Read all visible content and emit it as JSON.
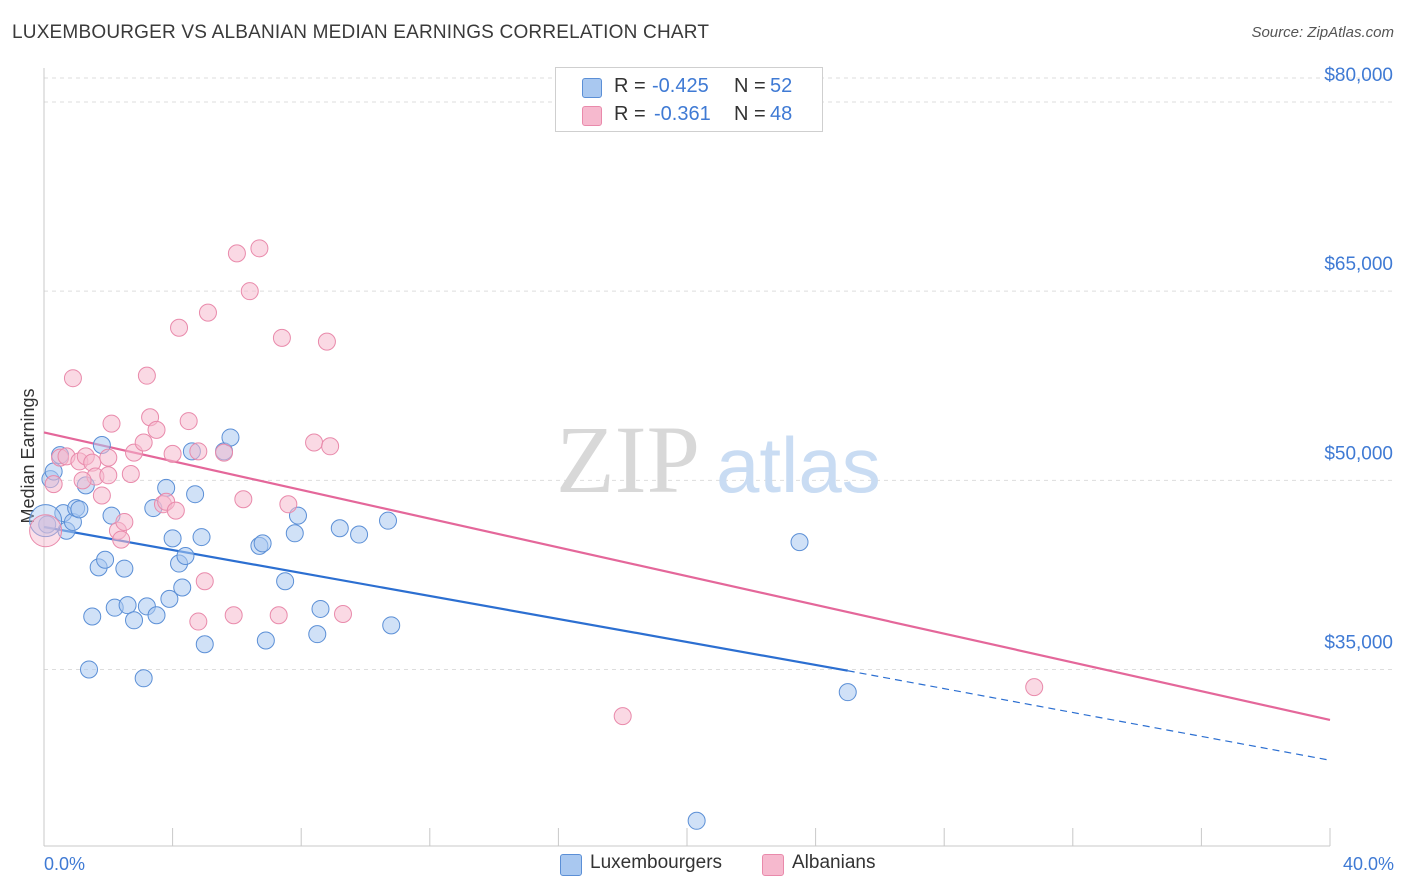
{
  "title": "LUXEMBOURGER VS ALBANIAN MEDIAN EARNINGS CORRELATION CHART",
  "source": "Source: ZipAtlas.com",
  "watermark": {
    "zip": "ZIP",
    "atlas": "atlas"
  },
  "colors": {
    "blue_fill": "#a9c8f0",
    "blue_stroke": "#5b8fd6",
    "blue_line": "#2c6fd1",
    "pink_fill": "#f6b9ce",
    "pink_stroke": "#e98aab",
    "pink_line": "#e4679a",
    "axis_label": "#3f7ad4",
    "grid": "#dddddd"
  },
  "legend": {
    "rows": [
      {
        "series": "blue",
        "r_label": "R =",
        "r_value": "-0.425",
        "n_label": "N =",
        "n_value": "52"
      },
      {
        "series": "pink",
        "r_label": "R =",
        "r_value": "-0.361",
        "n_label": "N =",
        "n_value": "48"
      }
    ]
  },
  "bottom_legend": {
    "blue": "Luxembourgers",
    "pink": "Albanians"
  },
  "chart_data": {
    "type": "scatter",
    "xlabel": "",
    "ylabel": "Median Earnings",
    "xlim": [
      0,
      40
    ],
    "ylim": [
      21000,
      82700
    ],
    "x_tick_labels": {
      "left": "0.0%",
      "right": "40.0%"
    },
    "y_ticks": [
      {
        "value": 35000,
        "label": "$35,000"
      },
      {
        "value": 50000,
        "label": "$50,000"
      },
      {
        "value": 65000,
        "label": "$65,000"
      },
      {
        "value": 80000,
        "label": "$80,000"
      }
    ],
    "x_tick_marks": [
      0,
      4,
      8,
      12,
      16,
      20,
      24,
      28,
      32,
      36,
      40
    ],
    "series": [
      {
        "name": "Luxembourgers",
        "color": "blue",
        "trend": {
          "x0": 0,
          "y0": 46300,
          "x1": 25,
          "y1": 34900,
          "dash_to_x": 40,
          "dash_to_y": 27800
        },
        "points": [
          [
            0.1,
            46500
          ],
          [
            0.2,
            50100
          ],
          [
            0.3,
            50700
          ],
          [
            0.5,
            52000
          ],
          [
            0.6,
            47400
          ],
          [
            0.7,
            46000
          ],
          [
            0.9,
            46700
          ],
          [
            1.0,
            47800
          ],
          [
            1.1,
            47700
          ],
          [
            1.3,
            49600
          ],
          [
            1.4,
            35000
          ],
          [
            1.5,
            39200
          ],
          [
            1.7,
            43100
          ],
          [
            1.8,
            52800
          ],
          [
            1.9,
            43700
          ],
          [
            2.1,
            47200
          ],
          [
            2.2,
            39900
          ],
          [
            2.5,
            43000
          ],
          [
            2.6,
            40100
          ],
          [
            2.8,
            38900
          ],
          [
            3.1,
            34300
          ],
          [
            3.2,
            40000
          ],
          [
            3.4,
            47800
          ],
          [
            3.5,
            39300
          ],
          [
            3.8,
            49400
          ],
          [
            3.9,
            40600
          ],
          [
            4.0,
            45400
          ],
          [
            4.2,
            43400
          ],
          [
            4.3,
            41500
          ],
          [
            4.4,
            44000
          ],
          [
            4.6,
            52300
          ],
          [
            4.7,
            48900
          ],
          [
            4.9,
            45500
          ],
          [
            5.0,
            37000
          ],
          [
            5.6,
            52300
          ],
          [
            5.8,
            53400
          ],
          [
            6.7,
            44800
          ],
          [
            6.8,
            45000
          ],
          [
            6.9,
            37300
          ],
          [
            7.5,
            42000
          ],
          [
            7.9,
            47200
          ],
          [
            7.8,
            45800
          ],
          [
            8.5,
            37800
          ],
          [
            8.6,
            39800
          ],
          [
            9.2,
            46200
          ],
          [
            9.8,
            45700
          ],
          [
            10.7,
            46800
          ],
          [
            10.8,
            38500
          ],
          [
            23.5,
            45100
          ],
          [
            25.0,
            33200
          ],
          [
            20.3,
            23000
          ],
          [
            0.05,
            46800
          ]
        ]
      },
      {
        "name": "Albanians",
        "color": "pink",
        "trend": {
          "x0": 0,
          "y0": 53800,
          "x1": 40,
          "y1": 31000
        },
        "points": [
          [
            0.05,
            46000
          ],
          [
            0.3,
            49700
          ],
          [
            0.5,
            51800
          ],
          [
            0.7,
            51900
          ],
          [
            0.9,
            58100
          ],
          [
            1.1,
            51500
          ],
          [
            1.3,
            51900
          ],
          [
            1.5,
            51400
          ],
          [
            1.6,
            50300
          ],
          [
            1.8,
            48800
          ],
          [
            2.0,
            50400
          ],
          [
            2.1,
            54500
          ],
          [
            2.3,
            46000
          ],
          [
            2.4,
            45300
          ],
          [
            2.5,
            46700
          ],
          [
            2.7,
            50500
          ],
          [
            2.8,
            52200
          ],
          [
            3.1,
            53000
          ],
          [
            3.2,
            58300
          ],
          [
            3.3,
            55000
          ],
          [
            3.5,
            54000
          ],
          [
            3.7,
            48100
          ],
          [
            3.8,
            48300
          ],
          [
            4.0,
            52100
          ],
          [
            4.1,
            47600
          ],
          [
            4.2,
            62100
          ],
          [
            4.5,
            54700
          ],
          [
            4.8,
            52300
          ],
          [
            4.8,
            38800
          ],
          [
            5.0,
            42000
          ],
          [
            5.1,
            63300
          ],
          [
            5.6,
            52200
          ],
          [
            5.9,
            39300
          ],
          [
            6.0,
            68000
          ],
          [
            6.2,
            48500
          ],
          [
            6.4,
            65000
          ],
          [
            6.7,
            68400
          ],
          [
            7.3,
            39300
          ],
          [
            7.4,
            61300
          ],
          [
            7.6,
            48100
          ],
          [
            8.4,
            53000
          ],
          [
            8.8,
            61000
          ],
          [
            8.9,
            52700
          ],
          [
            9.3,
            39400
          ],
          [
            18.0,
            31300
          ],
          [
            30.8,
            33600
          ],
          [
            1.2,
            50000
          ],
          [
            2.0,
            51800
          ]
        ]
      }
    ]
  }
}
